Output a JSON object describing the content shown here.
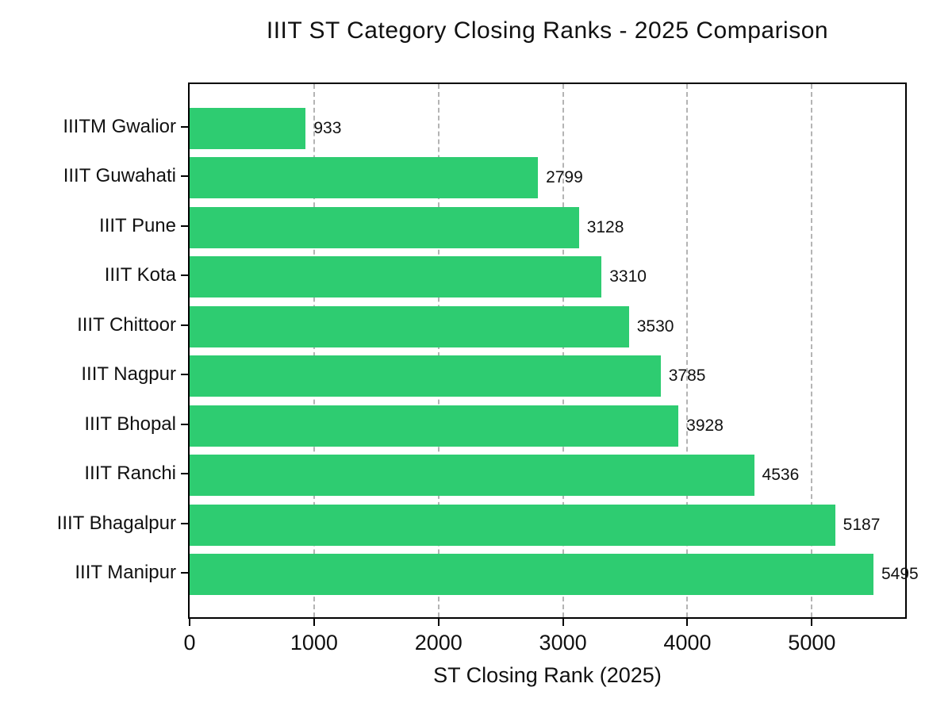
{
  "chart_data": {
    "type": "bar",
    "orientation": "horizontal",
    "title": "IIIT ST Category Closing Ranks - 2025 Comparison",
    "xlabel": "ST Closing Rank (2025)",
    "categories": [
      "IIITM Gwalior",
      "IIIT Guwahati",
      "IIIT Pune",
      "IIIT Kota",
      "IIIT Chittoor",
      "IIIT Nagpur",
      "IIIT Bhopal",
      "IIIT Ranchi",
      "IIIT Bhagalpur",
      "IIIT Manipur"
    ],
    "values": [
      933,
      2799,
      3128,
      3310,
      3530,
      3785,
      3928,
      4536,
      5187,
      5495
    ],
    "x_ticks": [
      0,
      1000,
      2000,
      3000,
      4000,
      5000
    ],
    "xlim": [
      0,
      5750
    ],
    "grid": "vertical-dashed",
    "legend": "none",
    "bar_color": "#2ecc71",
    "grid_color": "#b4b4b4",
    "axis_color": "#000000",
    "text_color": "#111111",
    "background": "#ffffff"
  }
}
